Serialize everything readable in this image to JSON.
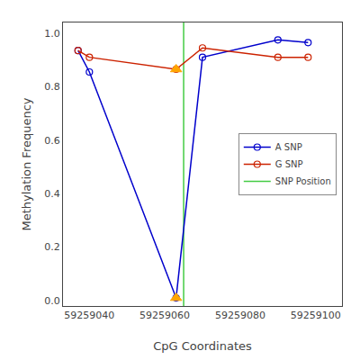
{
  "chart_data": {
    "type": "line",
    "xlabel": "CpG Coordinates",
    "ylabel": "Methylation Frequency",
    "x": [
      59259037,
      59259040,
      59259063,
      59259070,
      59259090,
      59259098
    ],
    "series": [
      {
        "name": "A SNP",
        "color": "#0000CC",
        "marker": "circle-open",
        "line_style": "solid",
        "values": [
          0.935,
          0.855,
          0.01,
          0.91,
          0.975,
          0.965
        ]
      },
      {
        "name": "G SNP",
        "color": "#CC2200",
        "marker": "circle-open",
        "line_style": "solid",
        "values": [
          0.935,
          0.91,
          0.865,
          0.945,
          0.91,
          0.91
        ]
      },
      {
        "name": "SNP Position",
        "type": "vline",
        "color": "#44CC44",
        "line_style": "solid",
        "x": [
          59259065
        ]
      },
      {
        "type": "scatter",
        "marker": "triangle-up",
        "color": "#FFA500",
        "x": [
          59259063,
          59259063
        ],
        "values": [
          0.01,
          0.865
        ]
      }
    ],
    "xlim": [
      59259033,
      59259107
    ],
    "ylim": [
      -0.02,
      1.04
    ],
    "xticks": [
      59259040,
      59259060,
      59259080,
      59259100
    ],
    "yticks": [
      {
        "value": 0.0,
        "label": "0.0"
      },
      0.2,
      0.4,
      0.6,
      0.8,
      {
        "value": 1.0,
        "label": "1.0"
      }
    ],
    "grid": false,
    "legend": "right"
  }
}
